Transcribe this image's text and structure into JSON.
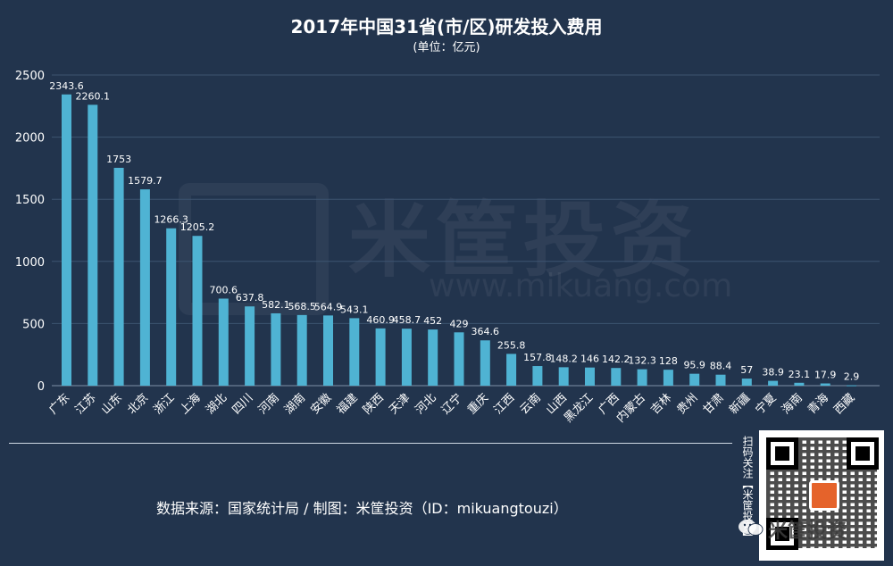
{
  "chart_data": {
    "type": "bar",
    "title": "2017年中国31省(市/区)研发投入费用",
    "subtitle": "(单位：亿元)",
    "ylim": [
      0,
      2500
    ],
    "yticks": [
      0,
      500,
      1000,
      1500,
      2000,
      2500
    ],
    "grid": true,
    "bar_color": "#4fb3d3",
    "categories": [
      "广东",
      "江苏",
      "山东",
      "北京",
      "浙江",
      "上海",
      "湖北",
      "四川",
      "河南",
      "湖南",
      "安徽",
      "福建",
      "陕西",
      "天津",
      "河北",
      "辽宁",
      "重庆",
      "江西",
      "云南",
      "山西",
      "黑龙江",
      "广西",
      "内蒙古",
      "吉林",
      "贵州",
      "甘肃",
      "新疆",
      "宁夏",
      "海南",
      "青海",
      "西藏"
    ],
    "values": [
      2343.6,
      2260.1,
      1753,
      1579.7,
      1266.3,
      1205.2,
      700.6,
      637.8,
      582.1,
      568.5,
      564.9,
      543.1,
      460.9,
      458.7,
      452,
      429,
      364.6,
      255.8,
      157.8,
      148.2,
      146,
      142.2,
      132.3,
      128,
      95.9,
      88.4,
      57,
      38.9,
      23.1,
      17.9,
      2.9
    ],
    "data_labels": [
      "2343.6",
      "2260.1",
      "1753",
      "1579.7",
      "1266.3",
      "1205.2",
      "700.6",
      "637.8",
      "582.1",
      "568.5",
      "564.9",
      "543.1",
      "460.9",
      "458.7",
      "452",
      "429",
      "364.6",
      "255.8",
      "157.8",
      "148.2",
      "146",
      "142.2",
      "132.3",
      "128",
      "95.9",
      "88.4",
      "57",
      "38.9",
      "23.1",
      "17.9",
      "2.9"
    ]
  },
  "watermark": {
    "brand": "米筐投资",
    "url": "www.mikuang.com"
  },
  "footer": {
    "source": "数据来源：国家统计局 / 制图：米筐投资（ID：mikuangtouzi）",
    "qr_label": "扫码关注【米筐投资】",
    "brand_overlay": "米筐投资"
  }
}
